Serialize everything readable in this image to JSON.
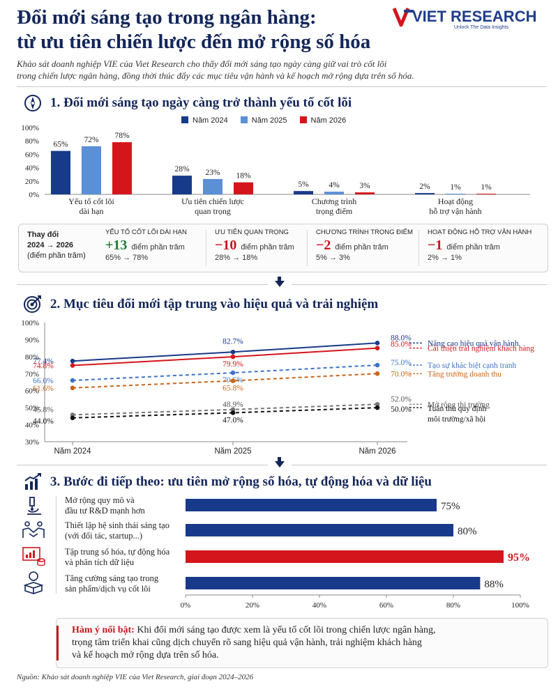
{
  "header": {
    "title_line1": "Đổi mới sáng tạo trong ngân hàng:",
    "title_line2": "từ ưu tiên chiến lược đến mở rộng số hóa",
    "logo_text": "VIET RESEARCH",
    "logo_tagline": "Unlock The Data Insights",
    "intro_line1": "Khảo sát doanh nghiệp VIE của Viet Research cho thấy đổi mới sáng tạo ngày càng giữ vai trò cốt lõi",
    "intro_line2": "trong chiến lược ngân hàng, đồng thời thúc đẩy các mục tiêu vận hành và kế hoạch mở rộng dựa trên số hóa."
  },
  "section1": {
    "title": "1. Đổi mới sáng tạo ngày càng trở thành yếu tố cốt lõi",
    "icon": "compass-icon",
    "change": {
      "label_line1": "Thay đổi",
      "label_line2": "2024 → 2026",
      "label_line3": "(điểm phần trăm)",
      "items": [
        {
          "head": "Yếu tố cốt lõi dài hạn",
          "value": "+13",
          "unit": "điểm phần trăm",
          "range": "65% → 78%",
          "color": "#1e7b34"
        },
        {
          "head": "Ưu tiên quan trọng",
          "value": "−10",
          "unit": "điểm phần trăm",
          "range": "28% → 18%",
          "color": "#c9141c"
        },
        {
          "head": "Chương trình trọng điểm",
          "value": "−2",
          "unit": "điểm phần trăm",
          "range": "5% → 3%",
          "color": "#c9141c"
        },
        {
          "head": "Hoạt động hỗ trợ vận hành",
          "value": "−1",
          "unit": "điểm phần trăm",
          "range": "2% → 1%",
          "color": "#c9141c"
        }
      ]
    }
  },
  "section2": {
    "title": "2. Mục tiêu đổi mới tập trung vào hiệu quả và trải nghiệm",
    "icon": "target-icon"
  },
  "section3": {
    "title": "3. Bước đi tiếp theo: ưu tiên mở rộng số hóa, tự động hóa và dữ liệu",
    "icon": "growth-chart-icon",
    "items": [
      {
        "line1": "Mở rộng quy mô và",
        "line2": "đầu tư R&D mạnh hơn",
        "icon": "microscope-icon"
      },
      {
        "line1": "Thiết lập hệ sinh thái sáng tạo",
        "line2": "(với đối tác, startup...)",
        "icon": "handshake-icon"
      },
      {
        "line1": "Tập trung số hóa, tự động hóa",
        "line2": "và phân tích dữ liệu",
        "icon": "data-analytics-icon"
      },
      {
        "line1": "Tăng cường sáng tạo trong",
        "line2": "sản phẩm/dịch vụ cốt lõi",
        "icon": "lightbulb-box-icon"
      }
    ]
  },
  "footer": {
    "highlight_label": "Hàm ý nổi bật:",
    "highlight_text1": " Khi đổi mới sáng tạo được xem là yếu tố cốt lõi trong chiến lược ngân hàng,",
    "highlight_text2": "trọng tâm triển khai cũng dịch chuyển rõ sang hiệu quả vận hành, trải nghiệm khách hàng",
    "highlight_text3": "và kế hoạch mở rộng dựa trên số hóa.",
    "source": "Nguồn: Khảo sát doanh nghiệp VIE của Viet Research, giai đoạn 2024–2026"
  },
  "colors": {
    "navy": "#13265a",
    "y2024": "#173a8a",
    "y2025": "#5b8fd6",
    "y2026": "#d4161c"
  },
  "chart_data": [
    {
      "type": "bar",
      "categories": [
        [
          "Yếu tố cốt lõi",
          "dài hạn"
        ],
        [
          "Ưu tiên chiến lược",
          "quan trọng"
        ],
        [
          "Chương trình",
          "trọng điểm"
        ],
        [
          "Hoạt động",
          "hỗ trợ vận hành"
        ]
      ],
      "series": [
        {
          "name": "Năm 2024",
          "values": [
            65,
            28,
            5,
            2
          ],
          "color": "#173a8a"
        },
        {
          "name": "Năm 2025",
          "values": [
            72,
            23,
            4,
            1
          ],
          "color": "#5b8fd6"
        },
        {
          "name": "Năm 2026",
          "values": [
            78,
            18,
            3,
            1
          ],
          "color": "#d4161c"
        }
      ],
      "yticks": [
        "0%",
        "20%",
        "40%",
        "60%",
        "80%",
        "100%"
      ],
      "ylim": [
        0,
        100
      ],
      "legend": "top"
    },
    {
      "type": "line",
      "x": [
        "Năm 2024",
        "Năm 2025",
        "Năm 2026"
      ],
      "ylim": [
        30,
        100
      ],
      "yticks": [
        "30%",
        "40%",
        "50%",
        "60%",
        "70%",
        "80%",
        "90%",
        "100%"
      ],
      "series": [
        {
          "name": "Nâng cao hiệu quả vận hành",
          "values": [
            77.4,
            82.7,
            88.0
          ],
          "color": "#173a8a",
          "dash": false
        },
        {
          "name": "Cải thiện trải nghiệm khách hàng",
          "values": [
            74.8,
            79.9,
            85.0
          ],
          "color": "#d4161c",
          "dash": false
        },
        {
          "name": "Tạo sự khác biệt cạnh tranh",
          "values": [
            66.0,
            70.5,
            75.0
          ],
          "color": "#3f73c8",
          "dash": true
        },
        {
          "name": "Tăng trưởng doanh thu",
          "values": [
            61.6,
            65.8,
            70.0
          ],
          "color": "#c8651b",
          "dash": true
        },
        {
          "name": "Mở rộng thị trường",
          "values": [
            45.8,
            48.9,
            52.0
          ],
          "color": "#777777",
          "dash": true
        },
        {
          "name": "Tuân thủ quy định môi trường/xã hội",
          "values": [
            44.0,
            47.0,
            50.0
          ],
          "color": "#111111",
          "dash": true
        }
      ],
      "labels": [
        [
          "77.4%",
          "82.7%",
          "88.0%"
        ],
        [
          "74.8%",
          "79.9%",
          "85.0%"
        ],
        [
          "66.0%",
          "70.5%",
          "75.0%"
        ],
        [
          "61.6%",
          "65.8%",
          "70.0%"
        ],
        [
          "45.8%",
          "48.9%",
          "52.0%"
        ],
        [
          "44.0%",
          "47.0%",
          "50.0%"
        ]
      ],
      "legend": "right"
    },
    {
      "type": "bar",
      "orientation": "horizontal",
      "values": [
        75,
        80,
        95,
        88
      ],
      "value_labels": [
        "75%",
        "80%",
        "95%",
        "88%"
      ],
      "colors": [
        "#173a8a",
        "#173a8a",
        "#d4161c",
        "#173a8a"
      ],
      "xlim": [
        0,
        100
      ],
      "xticks": [
        "0%",
        "20%",
        "40%",
        "60%",
        "80%",
        "100%"
      ]
    }
  ]
}
